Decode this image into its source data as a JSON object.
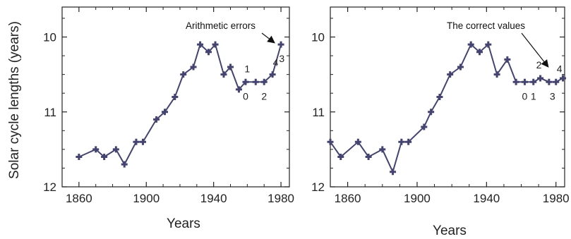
{
  "chart_data": [
    {
      "type": "line",
      "title": "",
      "xlabel": "Years",
      "ylabel": "Solar cycle lengths (years)",
      "xlim": [
        1850,
        1985
      ],
      "ylim": [
        12,
        9.6
      ],
      "y_inverted": true,
      "x_ticks": [
        1860,
        1900,
        1940,
        1980
      ],
      "y_ticks": [
        10,
        11,
        12
      ],
      "grid": false,
      "color": "#44446e",
      "series": [
        {
          "x": [
            1860,
            1870,
            1875,
            1882,
            1887,
            1894,
            1898,
            1906,
            1911,
            1917,
            1922,
            1928,
            1932,
            1937,
            1941,
            1946,
            1950,
            1955,
            1959,
            1965,
            1970,
            1975,
            1980
          ],
          "values": [
            11.6,
            11.5,
            11.6,
            11.5,
            11.7,
            11.4,
            11.4,
            11.1,
            11.0,
            10.8,
            10.5,
            10.4,
            10.1,
            10.2,
            10.1,
            10.5,
            10.4,
            10.7,
            10.6,
            10.6,
            10.6,
            10.5,
            10.1
          ]
        }
      ],
      "point_labels": [
        {
          "text": "0",
          "x": 1959
        },
        {
          "text": "1",
          "x": 1965
        },
        {
          "text": "2",
          "x": 1970
        },
        {
          "text": "3",
          "x": 1978
        },
        {
          "text": "4",
          "x": 1976
        }
      ],
      "annotation": {
        "text": "Arithmetic errors",
        "arrow_to_x": 1977
      }
    },
    {
      "type": "line",
      "title": "",
      "xlabel": "Years",
      "ylabel": "",
      "xlim": [
        1850,
        1985
      ],
      "ylim": [
        12,
        9.6
      ],
      "y_inverted": true,
      "x_ticks": [
        1860,
        1900,
        1940,
        1980
      ],
      "y_ticks": [
        10,
        11,
        12
      ],
      "grid": false,
      "color": "#44446e",
      "series": [
        {
          "x": [
            1850,
            1856,
            1866,
            1872,
            1880,
            1886,
            1891,
            1895,
            1904,
            1908,
            1913,
            1919,
            1925,
            1931,
            1936,
            1941,
            1946,
            1952,
            1957,
            1962,
            1967,
            1971,
            1976,
            1980,
            1984
          ],
          "values": [
            11.4,
            11.6,
            11.4,
            11.6,
            11.5,
            11.8,
            11.4,
            11.4,
            11.2,
            11.0,
            10.8,
            10.5,
            10.4,
            10.1,
            10.2,
            10.1,
            10.5,
            10.3,
            10.6,
            10.6,
            10.6,
            10.55,
            10.6,
            10.6,
            10.55
          ]
        }
      ],
      "point_labels": [
        {
          "text": "0",
          "x": 1962
        },
        {
          "text": "1",
          "x": 1967
        },
        {
          "text": "2",
          "x": 1971
        },
        {
          "text": "3",
          "x": 1978
        },
        {
          "text": "4",
          "x": 1982
        }
      ],
      "annotation": {
        "text": "The correct values",
        "arrow_to_x": 1978
      }
    }
  ]
}
